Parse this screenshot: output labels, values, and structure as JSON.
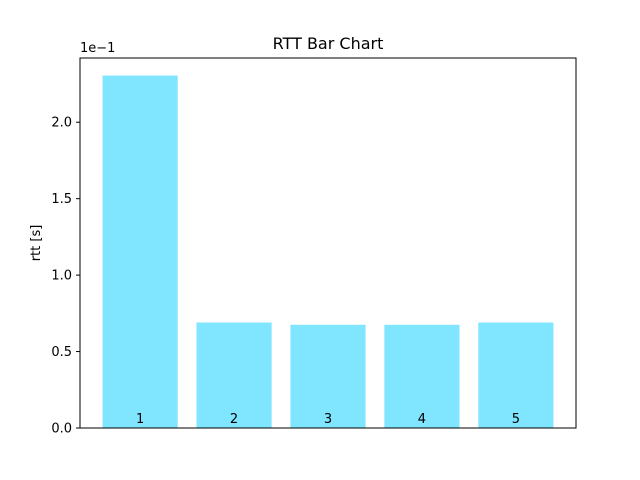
{
  "chart_data": {
    "type": "bar",
    "title": "RTT Bar Chart",
    "xlabel": "",
    "ylabel": "rtt [s]",
    "offset_label": "1e−1",
    "categories": [
      "1",
      "2",
      "3",
      "4",
      "5"
    ],
    "values": [
      0.2305,
      0.069,
      0.0675,
      0.0675,
      0.069
    ],
    "ylim": [
      0,
      0.242
    ],
    "y_ticks": [
      0.0,
      0.05,
      0.1,
      0.15,
      0.2
    ],
    "y_tick_labels": [
      "0.0",
      "0.5",
      "1.0",
      "1.5",
      "2.0"
    ],
    "x_ticks_shown": false,
    "bar_labels_inside": true,
    "grid": false,
    "legend": "none",
    "colors": {
      "bar": "#80e5ff",
      "axes": "#000000",
      "background": "#ffffff"
    }
  }
}
